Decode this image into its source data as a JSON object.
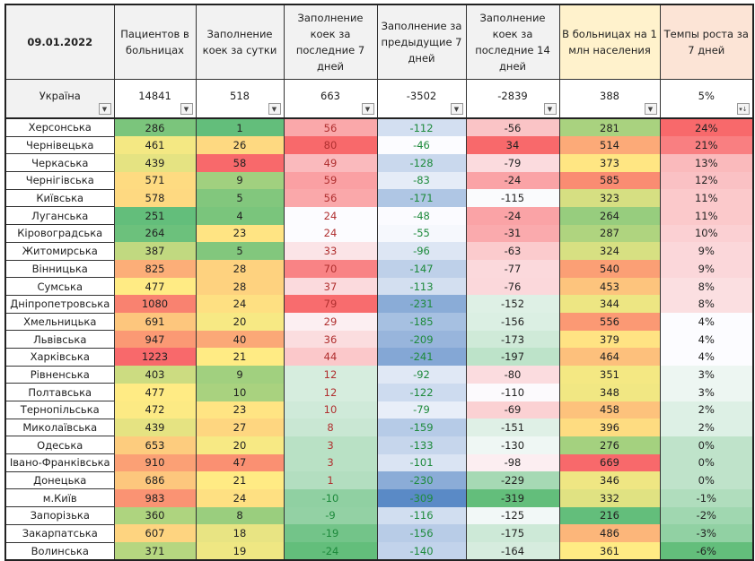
{
  "title_date": "09.01.2022",
  "headers": [
    "Пациентов в больницах",
    "Заполнение коек за сутки",
    "Заполнение коек за последние 7 дней",
    "Заполнение за предыдущие 7 дней",
    "Заполнение коек за последние 14 дней",
    "В больницах на 1 млн населения",
    "Темпы роста за 7 дней"
  ],
  "total": {
    "name": "Україна",
    "values": [
      "14841",
      "518",
      "663",
      "-3502",
      "-2839",
      "388",
      "5%"
    ]
  },
  "filter_icons": [
    "dropdown-arrow-icon",
    "dropdown-arrow-icon",
    "dropdown-arrow-icon",
    "dropdown-arrow-icon",
    "dropdown-arrow-icon",
    "dropdown-arrow-icon",
    "dropdown-arrow-icon",
    "sort-descending-icon"
  ],
  "rows": [
    {
      "name": "Херсонська",
      "values": [
        "286",
        "1",
        "56",
        "-112",
        "-56",
        "281",
        "24%"
      ]
    },
    {
      "name": "Чернівецька",
      "values": [
        "461",
        "26",
        "80",
        "-46",
        "34",
        "514",
        "21%"
      ]
    },
    {
      "name": "Черкаська",
      "values": [
        "439",
        "58",
        "49",
        "-128",
        "-79",
        "373",
        "13%"
      ]
    },
    {
      "name": "Чернігівська",
      "values": [
        "571",
        "9",
        "59",
        "-83",
        "-24",
        "585",
        "12%"
      ]
    },
    {
      "name": "Київська",
      "values": [
        "578",
        "5",
        "56",
        "-171",
        "-115",
        "323",
        "11%"
      ]
    },
    {
      "name": "Луганська",
      "values": [
        "251",
        "4",
        "24",
        "-48",
        "-24",
        "264",
        "11%"
      ]
    },
    {
      "name": "Кіровоградська",
      "values": [
        "264",
        "23",
        "24",
        "-55",
        "-31",
        "287",
        "10%"
      ]
    },
    {
      "name": "Житомирська",
      "values": [
        "387",
        "5",
        "33",
        "-96",
        "-63",
        "324",
        "9%"
      ]
    },
    {
      "name": "Вінницька",
      "values": [
        "825",
        "28",
        "70",
        "-147",
        "-77",
        "540",
        "9%"
      ]
    },
    {
      "name": "Сумська",
      "values": [
        "477",
        "28",
        "37",
        "-113",
        "-76",
        "453",
        "8%"
      ]
    },
    {
      "name": "Дніпропетровська",
      "values": [
        "1080",
        "24",
        "79",
        "-231",
        "-152",
        "344",
        "8%"
      ]
    },
    {
      "name": "Хмельницька",
      "values": [
        "691",
        "20",
        "29",
        "-185",
        "-156",
        "556",
        "4%"
      ]
    },
    {
      "name": "Львівська",
      "values": [
        "947",
        "40",
        "36",
        "-209",
        "-173",
        "379",
        "4%"
      ]
    },
    {
      "name": "Харківська",
      "values": [
        "1223",
        "21",
        "44",
        "-241",
        "-197",
        "464",
        "4%"
      ]
    },
    {
      "name": "Рівненська",
      "values": [
        "403",
        "9",
        "12",
        "-92",
        "-80",
        "351",
        "3%"
      ]
    },
    {
      "name": "Полтавська",
      "values": [
        "477",
        "10",
        "12",
        "-122",
        "-110",
        "348",
        "3%"
      ]
    },
    {
      "name": "Тернопільська",
      "values": [
        "472",
        "23",
        "10",
        "-79",
        "-69",
        "458",
        "2%"
      ]
    },
    {
      "name": "Миколаївська",
      "values": [
        "439",
        "27",
        "8",
        "-159",
        "-151",
        "396",
        "2%"
      ]
    },
    {
      "name": "Одеська",
      "values": [
        "653",
        "20",
        "3",
        "-133",
        "-130",
        "276",
        "0%"
      ]
    },
    {
      "name": "Івано-Франківська",
      "values": [
        "910",
        "47",
        "3",
        "-101",
        "-98",
        "669",
        "0%"
      ]
    },
    {
      "name": "Донецька",
      "values": [
        "686",
        "21",
        "1",
        "-230",
        "-229",
        "346",
        "0%"
      ]
    },
    {
      "name": "м.Київ",
      "values": [
        "983",
        "24",
        "-10",
        "-309",
        "-319",
        "332",
        "-1%"
      ]
    },
    {
      "name": "Запорізька",
      "values": [
        "360",
        "8",
        "-9",
        "-116",
        "-125",
        "216",
        "-2%"
      ]
    },
    {
      "name": "Закарпатська",
      "values": [
        "607",
        "18",
        "-19",
        "-156",
        "-175",
        "486",
        "-3%"
      ]
    },
    {
      "name": "Волинська",
      "values": [
        "371",
        "19",
        "-24",
        "-140",
        "-164",
        "361",
        "-6%"
      ]
    }
  ],
  "colors": {
    "green": "#63be7b",
    "yellow": "#ffeb84",
    "red": "#f8696b",
    "white": "#fcfcff",
    "blue": "#5a8ac6",
    "text_positive": "#b03030",
    "text_negative": "#1e8a3c"
  }
}
